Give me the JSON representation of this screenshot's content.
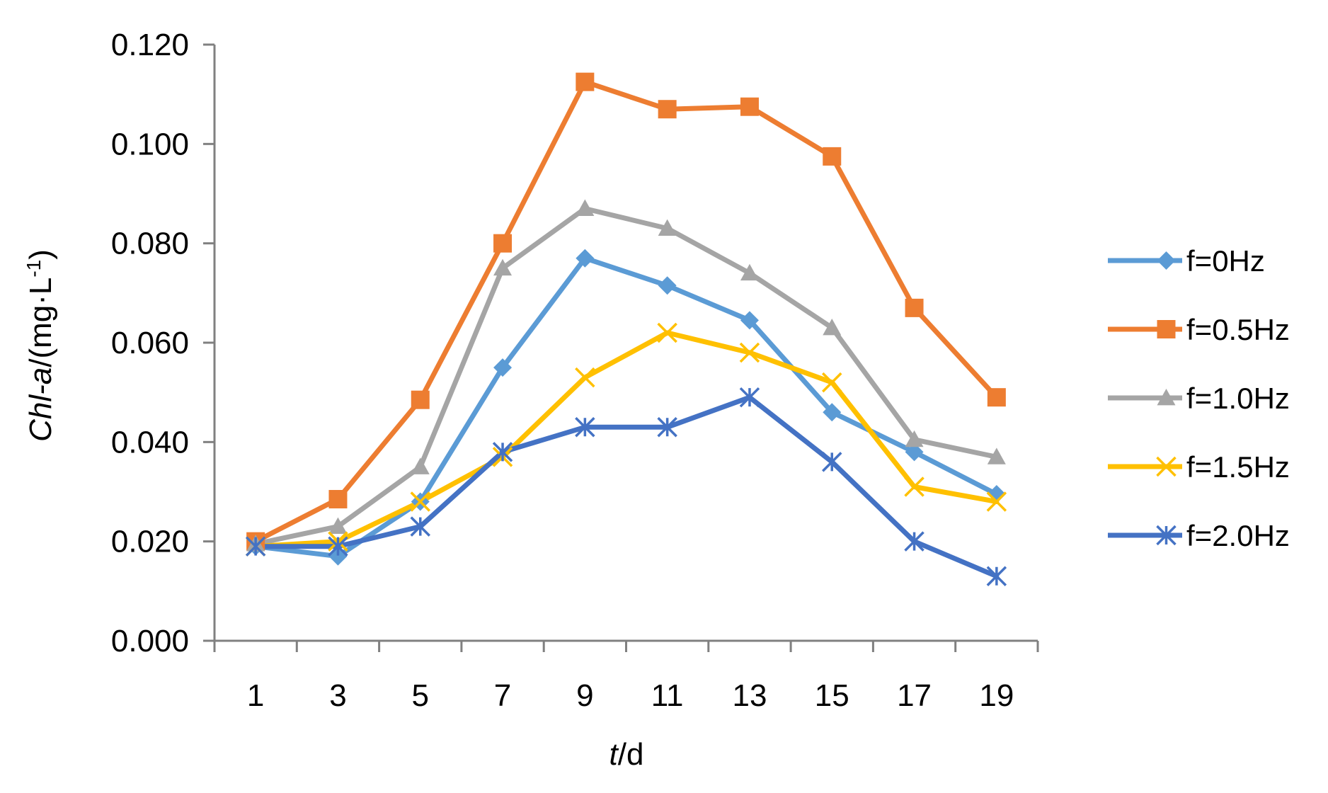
{
  "chart_data": {
    "type": "line",
    "title": "",
    "xlabel_italic": "t",
    "xlabel_rest": "/d",
    "ylabel_italic": "Chl-a",
    "ylabel_rest": "/(mg·L",
    "ylabel_sup": "-1",
    "ylabel_close": ")",
    "x": [
      1,
      3,
      5,
      7,
      9,
      11,
      13,
      15,
      17,
      19
    ],
    "x_tick_labels": [
      "1",
      "3",
      "5",
      "7",
      "9",
      "11",
      "13",
      "15",
      "17",
      "19"
    ],
    "ylim": [
      0,
      0.12
    ],
    "y_ticks": [
      0,
      0.02,
      0.04,
      0.06,
      0.08,
      0.1,
      0.12
    ],
    "y_tick_labels": [
      "0.000",
      "0.020",
      "0.040",
      "0.060",
      "0.080",
      "0.100",
      "0.120"
    ],
    "grid": false,
    "legend_position": "right",
    "series": [
      {
        "name": "f=0Hz",
        "color": "#5B9BD5",
        "marker": "diamond",
        "values": [
          0.019,
          0.017,
          0.028,
          0.055,
          0.077,
          0.0715,
          0.0645,
          0.046,
          0.038,
          0.0295
        ]
      },
      {
        "name": "f=0.5Hz",
        "color": "#ED7D31",
        "marker": "square",
        "values": [
          0.02,
          0.0285,
          0.0485,
          0.08,
          0.1125,
          0.107,
          0.1075,
          0.0975,
          0.067,
          0.049
        ]
      },
      {
        "name": "f=1.0Hz",
        "color": "#A5A5A5",
        "marker": "triangle",
        "values": [
          0.0195,
          0.023,
          0.035,
          0.075,
          0.087,
          0.083,
          0.074,
          0.063,
          0.0405,
          0.037
        ]
      },
      {
        "name": "f=1.5Hz",
        "color": "#FFC000",
        "marker": "x",
        "values": [
          0.019,
          0.02,
          0.028,
          0.037,
          0.053,
          0.062,
          0.058,
          0.052,
          0.031,
          0.028
        ]
      },
      {
        "name": "f=2.0Hz",
        "color": "#4472C4",
        "marker": "star",
        "values": [
          0.019,
          0.019,
          0.023,
          0.038,
          0.043,
          0.043,
          0.049,
          0.036,
          0.02,
          0.013
        ]
      }
    ]
  }
}
